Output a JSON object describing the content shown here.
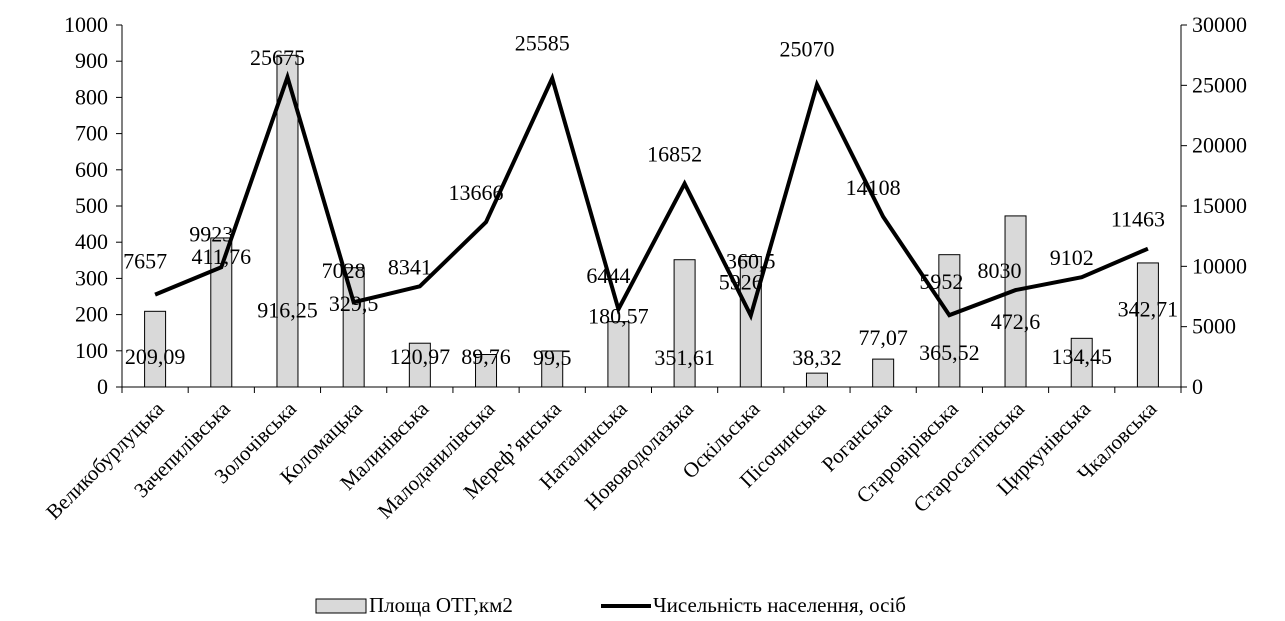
{
  "chart_data": {
    "type": "bar",
    "categories": [
      "Великобурлуцька",
      "Зачепилівська",
      "Золочівська",
      "Коломацька",
      "Малинівська",
      "Малоданилівська",
      "Мереф’янська",
      "Наталинська",
      "Нововодолазька",
      "Оскільська",
      "Пісочинська",
      "Роганська",
      "Старовірівська",
      "Старосалтівська",
      "Циркунівська",
      "Чкаловська"
    ],
    "series": [
      {
        "name": "Площа ОТГ,км2",
        "kind": "bar",
        "axis": "left",
        "color": "#d9d9d9",
        "values": [
          209.09,
          411.76,
          916.25,
          329.5,
          120.97,
          89.76,
          99.5,
          180.57,
          351.61,
          360.5,
          38.32,
          77.07,
          365.52,
          472.6,
          134.45,
          342.71
        ],
        "labels": [
          "209,09",
          "411,76",
          "916,25",
          "329,5",
          "120,97",
          "89,76",
          "99,5",
          "180,57",
          "351,61",
          "360,5",
          "38,32",
          "77,07",
          "365,52",
          "472,6",
          "134,45",
          "342,71"
        ]
      },
      {
        "name": "Чисельність населення, осіб",
        "kind": "line",
        "axis": "right",
        "color": "#000000",
        "values": [
          7657,
          9923,
          25675,
          7028,
          8341,
          13666,
          25585,
          6444,
          16852,
          5926,
          25070,
          14108,
          5952,
          8030,
          9102,
          11463
        ],
        "labels": [
          "7657",
          "9923",
          "25675",
          "7028",
          "8341",
          "13666",
          "25585",
          "6444",
          "16852",
          "5926",
          "25070",
          "14108",
          "5952",
          "8030",
          "9102",
          "11463"
        ]
      }
    ],
    "y_left": {
      "min": 0,
      "max": 1000,
      "step": 100,
      "ticks": [
        "0",
        "100",
        "200",
        "300",
        "400",
        "500",
        "600",
        "700",
        "800",
        "900",
        "1000"
      ]
    },
    "y_right": {
      "min": 0,
      "max": 30000,
      "step": 5000,
      "ticks": [
        "0",
        "5000",
        "10000",
        "15000",
        "20000",
        "25000",
        "30000"
      ]
    },
    "grid": false,
    "legend_position": "bottom"
  }
}
